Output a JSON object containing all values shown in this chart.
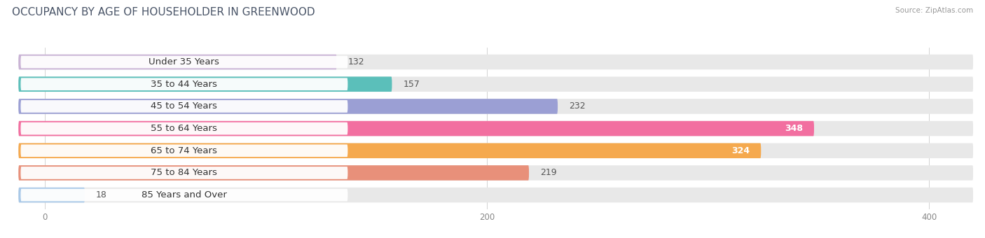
{
  "title": "OCCUPANCY BY AGE OF HOUSEHOLDER IN GREENWOOD",
  "source": "Source: ZipAtlas.com",
  "categories": [
    "Under 35 Years",
    "35 to 44 Years",
    "45 to 54 Years",
    "55 to 64 Years",
    "65 to 74 Years",
    "75 to 84 Years",
    "85 Years and Over"
  ],
  "values": [
    132,
    157,
    232,
    348,
    324,
    219,
    18
  ],
  "bar_colors": [
    "#c9b3d5",
    "#5bbfba",
    "#9b9fd4",
    "#f26fa0",
    "#f5a94e",
    "#e8907a",
    "#a8c8e8"
  ],
  "bar_bg_color": "#e8e8e8",
  "white_pill_color": "#ffffff",
  "xlim": [
    0,
    420
  ],
  "xticks": [
    0,
    200,
    400
  ],
  "title_fontsize": 11,
  "label_fontsize": 9.5,
  "value_fontsize": 9,
  "bar_height": 0.68,
  "background_color": "#ffffff",
  "value_threshold": 300
}
